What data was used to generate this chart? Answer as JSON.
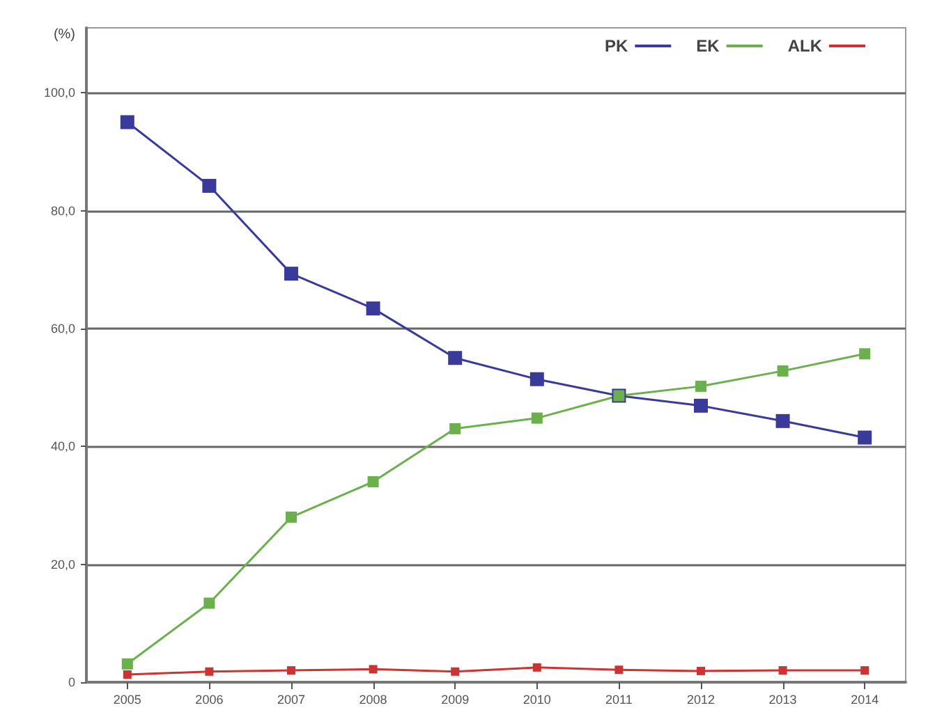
{
  "chart_data": {
    "type": "line",
    "ylabel": "(%)",
    "categories": [
      "2005",
      "2006",
      "2007",
      "2008",
      "2009",
      "2010",
      "2011",
      "2012",
      "2013",
      "2014"
    ],
    "series": [
      {
        "name": "PK",
        "color": "#3a3a9a",
        "values": [
          95,
          84.2,
          69.3,
          63.4,
          55,
          51.4,
          48.6,
          46.9,
          44.3,
          41.5
        ]
      },
      {
        "name": "EK",
        "color": "#6ab04c",
        "values": [
          3.1,
          13.4,
          28,
          34,
          43,
          44.8,
          48.6,
          50.2,
          52.8,
          55.7
        ]
      },
      {
        "name": "ALK",
        "color": "#cc3333",
        "values": [
          1.3,
          1.8,
          2,
          2.2,
          1.8,
          2.5,
          2.1,
          1.9,
          2,
          2
        ]
      }
    ],
    "ylim": [
      0,
      111
    ],
    "yticks": [
      {
        "value": 0,
        "label": "0"
      },
      {
        "value": 20,
        "label": "20,0"
      },
      {
        "value": 40,
        "label": "40,0"
      },
      {
        "value": 60,
        "label": "60,0"
      },
      {
        "value": 80,
        "label": "80,0"
      },
      {
        "value": 100,
        "label": "100,0"
      }
    ],
    "grid": "y",
    "legend": "top right",
    "marker": "square",
    "line_style": "solid"
  }
}
